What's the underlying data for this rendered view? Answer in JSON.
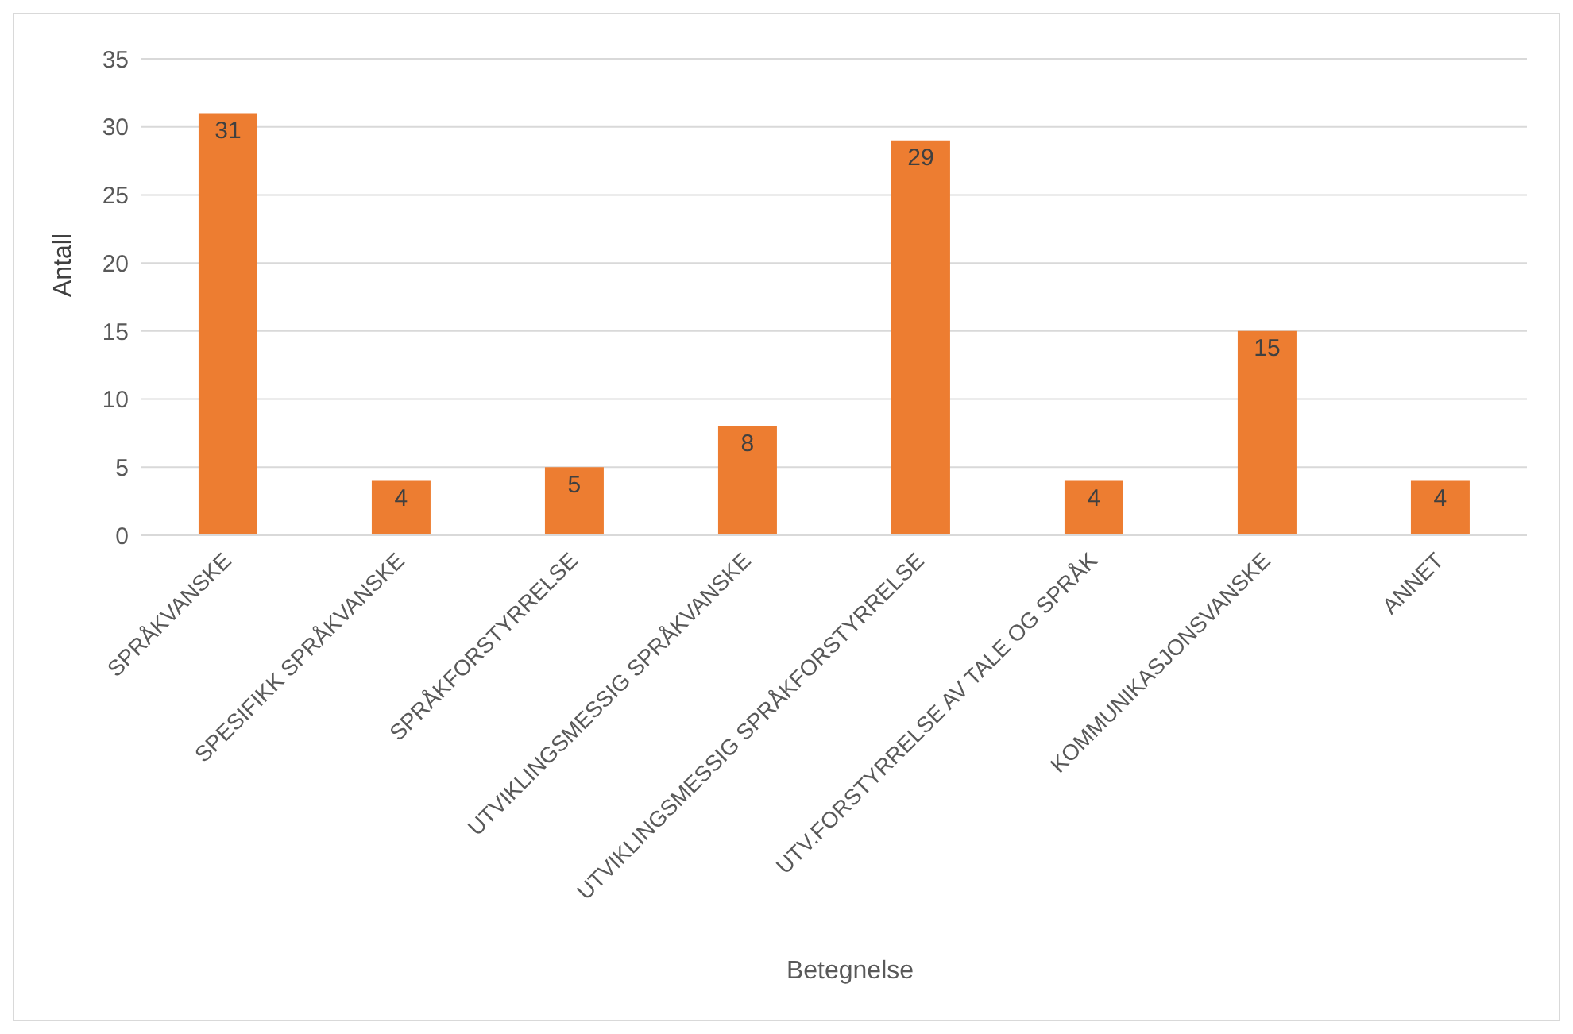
{
  "chart_data": {
    "type": "bar",
    "xlabel": "Betegnelse",
    "ylabel": "Antall",
    "categories": [
      "SPRÅKVANSKE",
      "SPESIFIKK SPRÅKVANSKE",
      "SPRÅKFORSTYRRELSE",
      "UTVIKLINGSMESSIG SPRÅKVANSKE",
      "UTVIKLINGSMESSIG SPRÅKFORSTYRRELSE",
      "UTV.FORSTYRRELSE AV TALE OG SPRÅK",
      "KOMMUNIKASJONSVANSKE",
      "ANNET"
    ],
    "values": [
      31,
      4,
      5,
      8,
      29,
      4,
      15,
      4
    ],
    "color": "#ed7d31",
    "ylim": [
      0,
      35
    ],
    "yticks": [
      0,
      5,
      10,
      15,
      20,
      25,
      30,
      35
    ],
    "grid": "y",
    "legend": false,
    "data_labels": true
  }
}
